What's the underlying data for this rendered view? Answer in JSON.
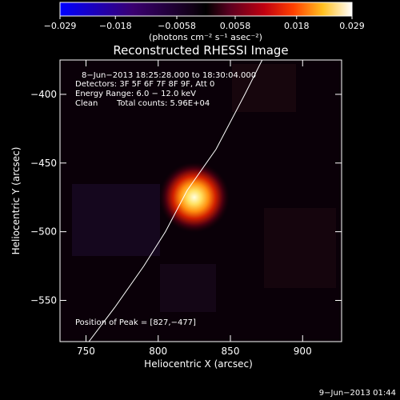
{
  "chart_data": {
    "type": "heatmap",
    "title": "Reconstructed RHESSI Image",
    "xlabel": "Heliocentric X (arcsec)",
    "ylabel": "Heliocentric Y (arcsec)",
    "xlim": [
      732,
      927
    ],
    "ylim": [
      -580,
      -375
    ],
    "x_ticks": [
      750,
      800,
      850,
      900
    ],
    "y_ticks": [
      -550,
      -500,
      -450,
      -400
    ],
    "x_tick_labels": [
      "750",
      "800",
      "850",
      "900"
    ],
    "y_tick_labels": [
      "−550",
      "−500",
      "−450",
      "−400"
    ],
    "colorbar": {
      "range": [
        -0.029,
        0.029
      ],
      "ticks": [
        -0.029,
        -0.018,
        -0.0058,
        0.0058,
        0.018,
        0.029
      ],
      "tick_labels": [
        "−0.029",
        "−0.018",
        "−0.0058",
        "0.0058",
        "0.018",
        "0.029"
      ],
      "units_label": "(photons cm⁻² s⁻¹ asec⁻²)"
    },
    "annotations": {
      "time_range": "8−Jun−2013 18:25:28.000 to 18:30:04.000",
      "detectors": "Detectors: 3F 5F 6F 7F 8F 9F, Att 0",
      "energy": "Energy Range: 6.0 − 12.0 keV",
      "clean_label": "Clean",
      "total_counts": "Total counts: 5.96E+04",
      "peak": "Position of Peak = [827,−477]"
    },
    "peak": {
      "x": 827,
      "y": -477
    },
    "source": {
      "x": 825,
      "y": -475,
      "sigma": 7,
      "peak_value": 0.029
    },
    "limb": [
      [
        752,
        -580
      ],
      [
        770,
        -555
      ],
      [
        790,
        -525
      ],
      [
        805,
        -500
      ],
      [
        820,
        -470
      ],
      [
        840,
        -440
      ],
      [
        860,
        -400
      ],
      [
        872,
        -375
      ]
    ],
    "footer_date": "9−Jun−2013 01:44"
  },
  "colors": {
    "background": "#000000",
    "text": "#ffffff",
    "limb_line": "#ffffff"
  }
}
